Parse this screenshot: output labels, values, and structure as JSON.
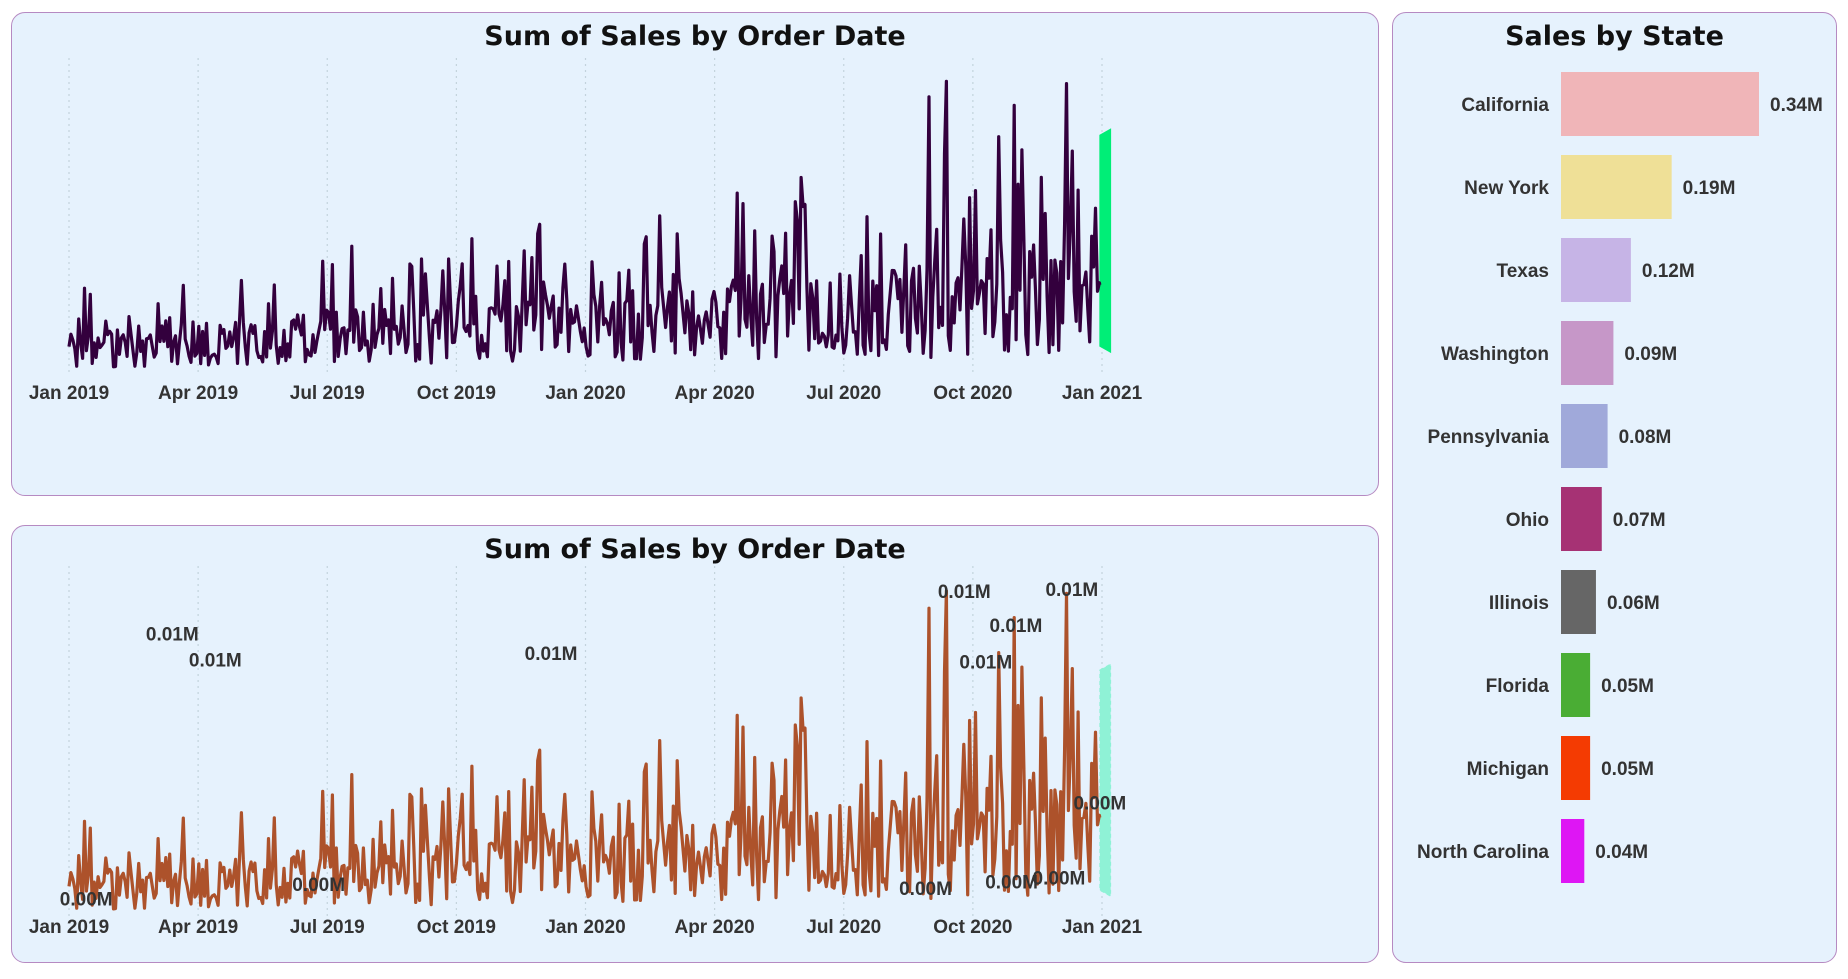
{
  "chart_data": [
    {
      "type": "line",
      "title": "Sum of Sales by Order Date",
      "xlabel": "",
      "ylabel": "",
      "x_range": [
        "2019-01-01",
        "2021-01-01"
      ],
      "ylim": [
        0,
        0.016
      ],
      "tick_labels": [
        "Jan 2019",
        "Apr 2019",
        "Jul 2019",
        "Oct 2019",
        "Jan 2020",
        "Apr 2020",
        "Jul 2020",
        "Oct 2020",
        "Jan 2021"
      ],
      "series": [
        {
          "name": "Sum of Sales",
          "color": "#33003d"
        }
      ],
      "forecast": {
        "color": "#00ee77",
        "upper": 0.0125,
        "lower": 0.0015
      },
      "data_labels": []
    },
    {
      "type": "line",
      "title": "Sum of Sales by Order Date",
      "xlabel": "",
      "ylabel": "",
      "x_range": [
        "2019-01-01",
        "2021-01-01"
      ],
      "ylim": [
        0,
        0.016
      ],
      "tick_labels": [
        "Jan 2019",
        "Apr 2019",
        "Jul 2019",
        "Oct 2019",
        "Jan 2020",
        "Apr 2020",
        "Jul 2020",
        "Oct 2020",
        "Jan 2021"
      ],
      "series": [
        {
          "name": "Sum of Sales",
          "color": "#ad522b"
        }
      ],
      "forecast": {
        "color": "#8ff2d6",
        "upper": 0.0116,
        "lower": 0.0013
      },
      "data_labels": [
        {
          "label": "0.00M",
          "month": 0.4,
          "value": 0.0002
        },
        {
          "label": "0.01M",
          "month": 2.4,
          "value": 0.0126
        },
        {
          "label": "0.01M",
          "month": 3.4,
          "value": 0.0114
        },
        {
          "label": "0.00M",
          "month": 5.8,
          "value": 0.0009
        },
        {
          "label": "0.01M",
          "month": 11.2,
          "value": 0.0117
        },
        {
          "label": "0.00M",
          "month": 19.9,
          "value": 0.0007
        },
        {
          "label": "0.01M",
          "month": 20.8,
          "value": 0.0146
        },
        {
          "label": "0.01M",
          "month": 21.3,
          "value": 0.0113
        },
        {
          "label": "0.01M",
          "month": 22.0,
          "value": 0.013
        },
        {
          "label": "0.00M",
          "month": 21.9,
          "value": 0.001
        },
        {
          "label": "0.00M",
          "month": 23.0,
          "value": 0.0012
        },
        {
          "label": "0.01M",
          "month": 23.3,
          "value": 0.0147
        },
        {
          "label": "0.00M",
          "month": 23.95,
          "value": 0.0047
        }
      ]
    },
    {
      "type": "bar",
      "orientation": "horizontal",
      "title": "Sales by State",
      "xlabel": "",
      "ylabel": "",
      "xlim": [
        0,
        0.34
      ],
      "categories": [
        "California",
        "New York",
        "Texas",
        "Washington",
        "Pennsylvania",
        "Ohio",
        "Illinois",
        "Florida",
        "Michigan",
        "North Carolina"
      ],
      "values": [
        0.34,
        0.19,
        0.12,
        0.09,
        0.08,
        0.07,
        0.06,
        0.05,
        0.05,
        0.04
      ],
      "value_labels": [
        "0.34M",
        "0.19M",
        "0.12M",
        "0.09M",
        "0.08M",
        "0.07M",
        "0.06M",
        "0.05M",
        "0.05M",
        "0.04M"
      ],
      "colors": [
        "#f0b5b8",
        "#efe097",
        "#c6b4e6",
        "#c697c8",
        "#a0a9da",
        "#a63274",
        "#666666",
        "#4aad34",
        "#f43b02",
        "#de16f4"
      ]
    }
  ]
}
